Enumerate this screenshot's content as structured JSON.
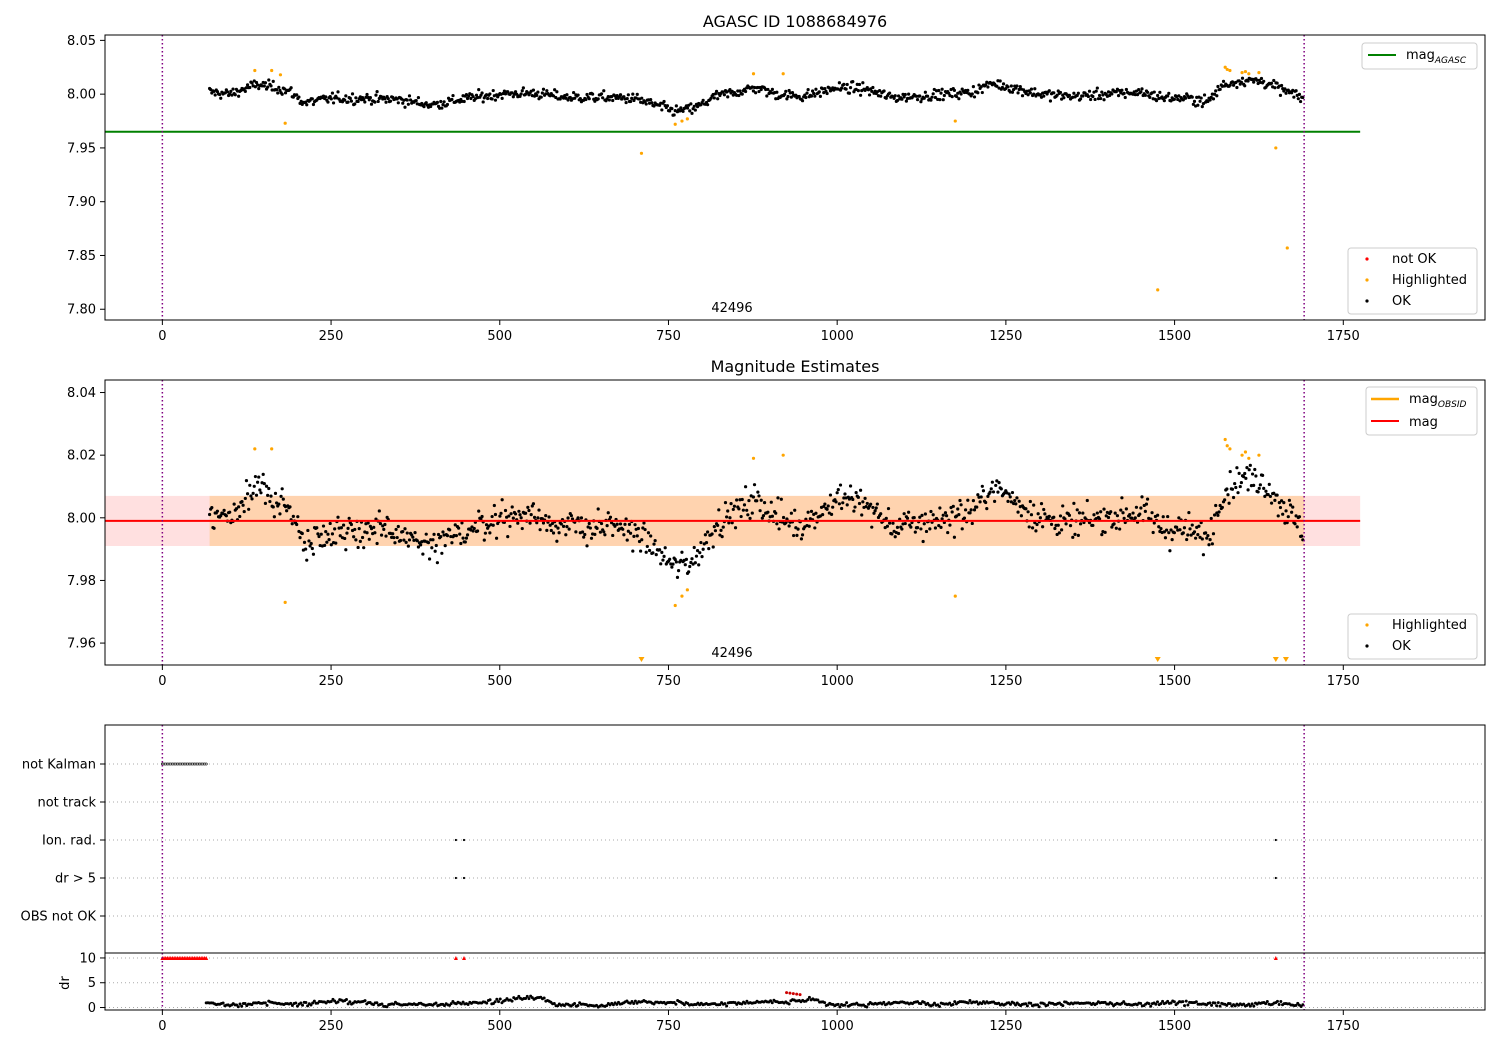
{
  "chart_data": [
    {
      "type": "scatter",
      "title": "AGASC ID 1088684976",
      "annotation": "42496",
      "xlim": [
        -85,
        1960
      ],
      "ylim": [
        7.79,
        8.055
      ],
      "xticks": [
        0,
        250,
        500,
        750,
        1000,
        1250,
        1500,
        1750
      ],
      "yticks": [
        7.8,
        7.85,
        7.9,
        7.95,
        8.0,
        8.05
      ],
      "vlines": [
        0,
        1692
      ],
      "hline": {
        "name": "mag",
        "subscript": "AGASC",
        "y": 7.965,
        "x_range": [
          -85,
          1775
        ],
        "color": "#008000"
      },
      "trend": {
        "x": [
          70,
          100,
          140,
          170,
          190,
          210,
          250,
          300,
          350,
          400,
          450,
          500,
          550,
          600,
          650,
          700,
          730,
          760,
          790,
          820,
          850,
          880,
          910,
          950,
          1000,
          1040,
          1080,
          1120,
          1160,
          1200,
          1230,
          1260,
          1300,
          1350,
          1400,
          1450,
          1480,
          1520,
          1550,
          1570,
          1600,
          1630,
          1660,
          1690
        ],
        "y": [
          8.002,
          8.0,
          8.009,
          8.006,
          8.002,
          7.992,
          7.996,
          7.996,
          7.995,
          7.99,
          7.996,
          8.0,
          8.001,
          7.997,
          7.997,
          7.996,
          7.99,
          7.984,
          7.987,
          7.998,
          8.002,
          8.006,
          8.0,
          7.998,
          8.006,
          8.005,
          7.997,
          7.998,
          8.0,
          8.002,
          8.01,
          8.006,
          8.0,
          7.998,
          8.0,
          8.002,
          7.997,
          7.996,
          7.993,
          8.008,
          8.013,
          8.012,
          8.004,
          7.996
        ],
        "noise": 0.0042,
        "n_points": 980
      },
      "highlighted": {
        "x": [
          137,
          162,
          175,
          182,
          710,
          760,
          770,
          778,
          876,
          920,
          1175,
          1475,
          1575,
          1578,
          1582,
          1600,
          1605,
          1610,
          1625,
          1650,
          1667
        ],
        "y": [
          8.022,
          8.022,
          8.018,
          7.973,
          7.945,
          7.972,
          7.975,
          7.977,
          8.019,
          8.019,
          7.975,
          7.818,
          8.025,
          8.023,
          8.022,
          8.02,
          8.021,
          8.019,
          8.02,
          7.95,
          7.857
        ]
      },
      "legend": {
        "lines": [
          {
            "label": "mag",
            "subscript": "AGASC",
            "color": "#008000"
          }
        ],
        "markers": [
          {
            "label": "not OK",
            "color": "#ff0000"
          },
          {
            "label": "Highlighted",
            "color": "#ffa500"
          },
          {
            "label": "OK",
            "color": "#000000"
          }
        ]
      }
    },
    {
      "type": "scatter",
      "title": "Magnitude Estimates",
      "annotation": "42496",
      "xlim": [
        -85,
        1960
      ],
      "ylim": [
        7.953,
        8.044
      ],
      "xticks": [
        0,
        250,
        500,
        750,
        1000,
        1250,
        1500,
        1750
      ],
      "yticks": [
        7.96,
        7.98,
        8.0,
        8.02,
        8.04
      ],
      "vlines": [
        0,
        1692
      ],
      "mag_line": {
        "y": 7.999,
        "color": "#ff0000"
      },
      "band": {
        "y_range": [
          7.991,
          8.007
        ],
        "x_range": [
          -85,
          1775
        ]
      },
      "offscale_markers_x": [
        710,
        1475,
        1650,
        1665
      ],
      "highlighted": {
        "x": [
          137,
          162,
          182,
          760,
          770,
          778,
          876,
          920,
          1175,
          1575,
          1578,
          1582,
          1600,
          1605,
          1610,
          1625
        ],
        "y": [
          8.022,
          8.022,
          7.973,
          7.972,
          7.975,
          7.977,
          8.019,
          8.02,
          7.975,
          8.025,
          8.023,
          8.022,
          8.02,
          8.021,
          8.019,
          8.02
        ]
      },
      "legend": {
        "lines": [
          {
            "label": "mag",
            "subscript": "OBSID",
            "color": "#ffa500"
          },
          {
            "label": "mag",
            "subscript": "",
            "color": "#ff0000"
          }
        ],
        "markers": [
          {
            "label": "Highlighted",
            "color": "#ffa500"
          },
          {
            "label": "OK",
            "color": "#000000"
          }
        ]
      }
    },
    {
      "type": "scatter",
      "title": "",
      "xlim": [
        -85,
        1960
      ],
      "xticks": [
        0,
        250,
        500,
        750,
        1000,
        1250,
        1500,
        1750
      ],
      "vlines": [
        0,
        1692
      ],
      "flag_rows": [
        "not Kalman",
        "not track",
        "Ion. rad.",
        "dr > 5",
        "OBS not OK"
      ],
      "flags": {
        "not Kalman": {
          "x_range": [
            0,
            65
          ]
        },
        "not track": {
          "x": []
        },
        "Ion. rad.": {
          "x": [
            435,
            447,
            1650
          ]
        },
        "dr > 5": {
          "x": [
            435,
            447,
            1650
          ]
        },
        "OBS not OK": {
          "x": []
        }
      },
      "dr": {
        "ylabel": "dr",
        "ylim": [
          -0.5,
          11
        ],
        "yticks": [
          0,
          5,
          10
        ],
        "clipped_at": 10,
        "clipped_x": [
          0,
          65,
          435,
          447,
          1650
        ],
        "trend": {
          "x": [
            65,
            100,
            150,
            200,
            250,
            300,
            330,
            350,
            400,
            450,
            500,
            520,
            560,
            580,
            650,
            700,
            750,
            800,
            850,
            900,
            920,
            940,
            960,
            1000,
            1050,
            1100,
            1150,
            1200,
            1250,
            1300,
            1350,
            1400,
            1450,
            1500,
            1550,
            1600,
            1650,
            1690
          ],
          "y": [
            0.8,
            0.5,
            1.0,
            0.6,
            1.3,
            1.1,
            0.4,
            0.8,
            0.5,
            0.9,
            1.2,
            1.8,
            2.0,
            0.6,
            0.5,
            1.2,
            1.1,
            0.6,
            0.9,
            1.3,
            1.0,
            1.2,
            1.5,
            0.5,
            0.6,
            1.0,
            0.6,
            1.1,
            0.8,
            0.6,
            1.0,
            0.8,
            0.6,
            1.0,
            0.7,
            0.5,
            0.8,
            0.4
          ],
          "noise": 0.35,
          "n_points": 650
        },
        "red_points": {
          "x": [
            925,
            930,
            935,
            940,
            945
          ],
          "y": [
            3.0,
            2.9,
            2.8,
            2.7,
            2.6
          ]
        }
      }
    }
  ]
}
